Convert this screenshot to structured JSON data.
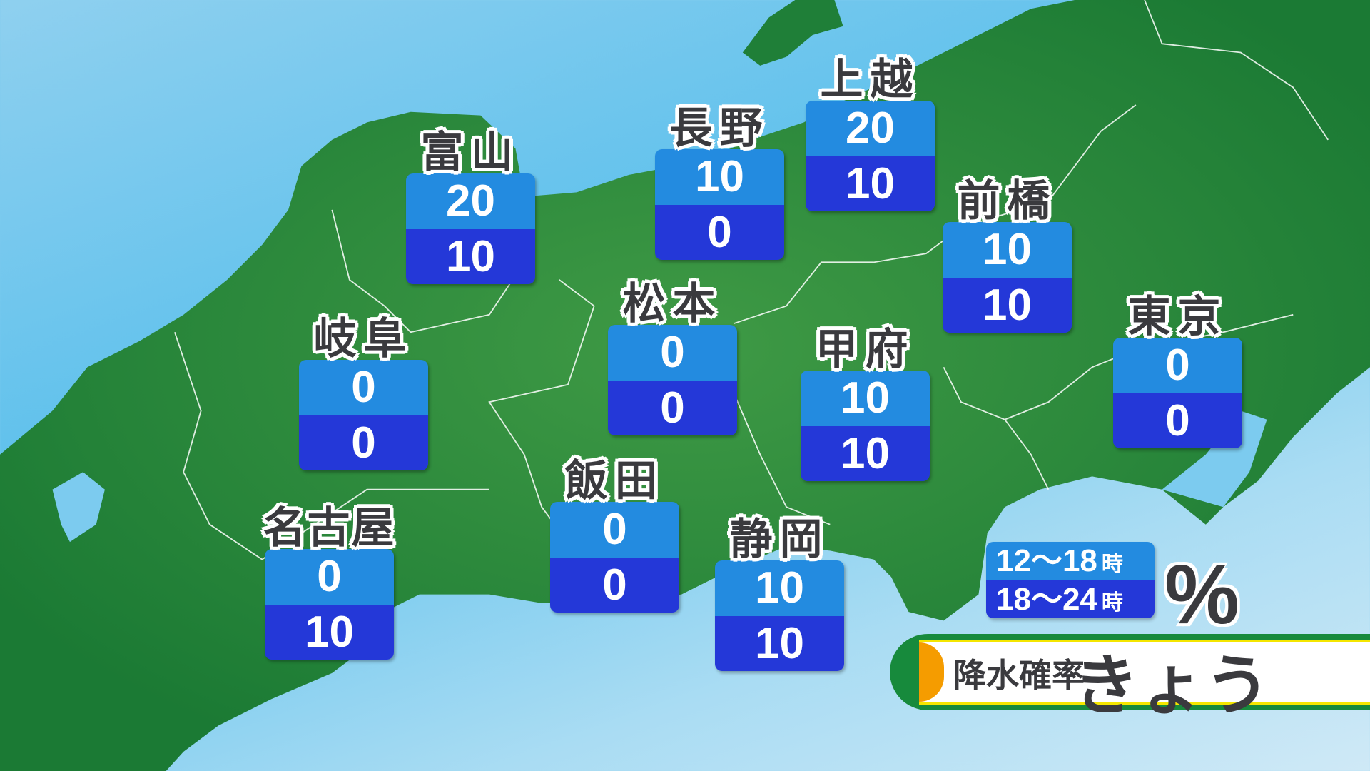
{
  "colors": {
    "land": "#1f7f38",
    "sea": "#5cc0ec",
    "slot1": "#238be0",
    "slot2": "#2438d8",
    "label_text": "#3a3a3e",
    "accent_orange": "#f59c00",
    "accent_yellow": "#f5e600",
    "bar_green": "#178a3c"
  },
  "stations": [
    {
      "name": "富山",
      "p1": "20",
      "p2": "10"
    },
    {
      "name": "長野",
      "p1": "10",
      "p2": "0"
    },
    {
      "name": "上越",
      "p1": "20",
      "p2": "10"
    },
    {
      "name": "前橋",
      "p1": "10",
      "p2": "10"
    },
    {
      "name": "松本",
      "p1": "0",
      "p2": "0"
    },
    {
      "name": "岐阜",
      "p1": "0",
      "p2": "0"
    },
    {
      "name": "甲府",
      "p1": "10",
      "p2": "10"
    },
    {
      "name": "東京",
      "p1": "0",
      "p2": "0"
    },
    {
      "name": "飯田",
      "p1": "0",
      "p2": "0"
    },
    {
      "name": "名古屋",
      "p1": "0",
      "p2": "10"
    },
    {
      "name": "静岡",
      "p1": "10",
      "p2": "10"
    }
  ],
  "legend": {
    "slot1": "12〜18",
    "slot2": "18〜24",
    "hour_unit": "時",
    "unit": "%"
  },
  "title": {
    "label": "降水確率",
    "day": "きょう"
  }
}
